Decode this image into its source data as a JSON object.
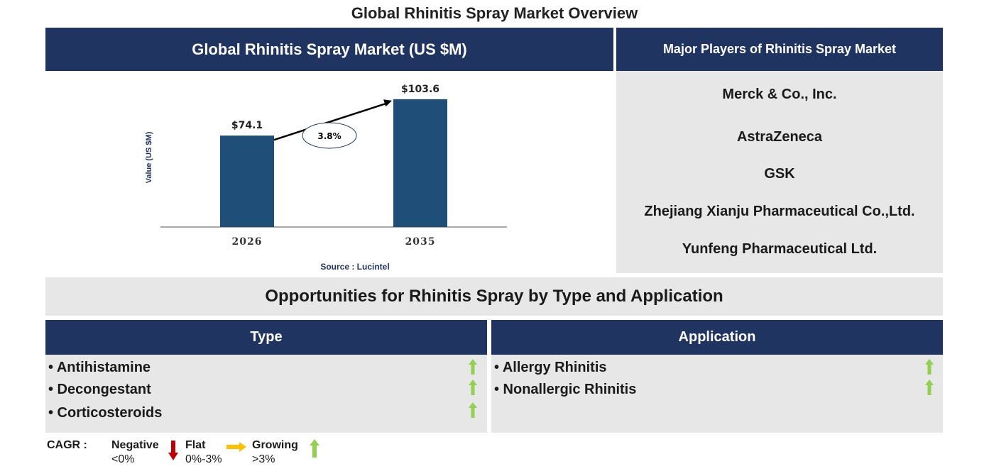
{
  "page_title": "Global Rhinitis Spray Market Overview",
  "market_header": "Global Rhinitis Spray Market (US $M)",
  "players_header": "Major Players of Rhinitis Spray Market",
  "players": [
    "Merck & Co., Inc.",
    "AstraZeneca",
    "GSK",
    "Zhejiang Xianju Pharmaceutical Co.,Ltd.",
    "Yunfeng Pharmaceutical Ltd."
  ],
  "source": "Source : Lucintel",
  "opportunities_title": "Opportunities for Rhinitis Spray by Type and Application",
  "type_section": {
    "header": "Type",
    "items": [
      "• Antihistamine",
      "• Decongestant",
      "• Corticosteroids"
    ],
    "trend": [
      "growing",
      "growing",
      "growing"
    ]
  },
  "application_section": {
    "header": "Application",
    "items": [
      "• Allergy Rhinitis",
      "• Nonallergic Rhinitis"
    ],
    "trend": [
      "growing",
      "growing"
    ]
  },
  "legend": {
    "cagr_label": "CAGR  :",
    "negative_label": "Negative",
    "negative_range": "<0%",
    "flat_label": "Flat",
    "flat_range": "0%-3%",
    "growing_label": "Growing",
    "growing_range": ">3%",
    "colors": {
      "negative": "#c00000",
      "flat": "#ffc000",
      "growing": "#92d050"
    }
  },
  "chart_data": {
    "type": "bar",
    "categories": [
      "2026",
      "2035"
    ],
    "values": [
      74.1,
      103.6
    ],
    "value_labels": [
      "$74.1",
      "$103.6"
    ],
    "ylabel": "Value (US $M)",
    "xlabel": "",
    "ylim": [
      0,
      115
    ],
    "cagr_annotation": "3.8%",
    "bar_color": "#1f4e79",
    "grid": false
  }
}
